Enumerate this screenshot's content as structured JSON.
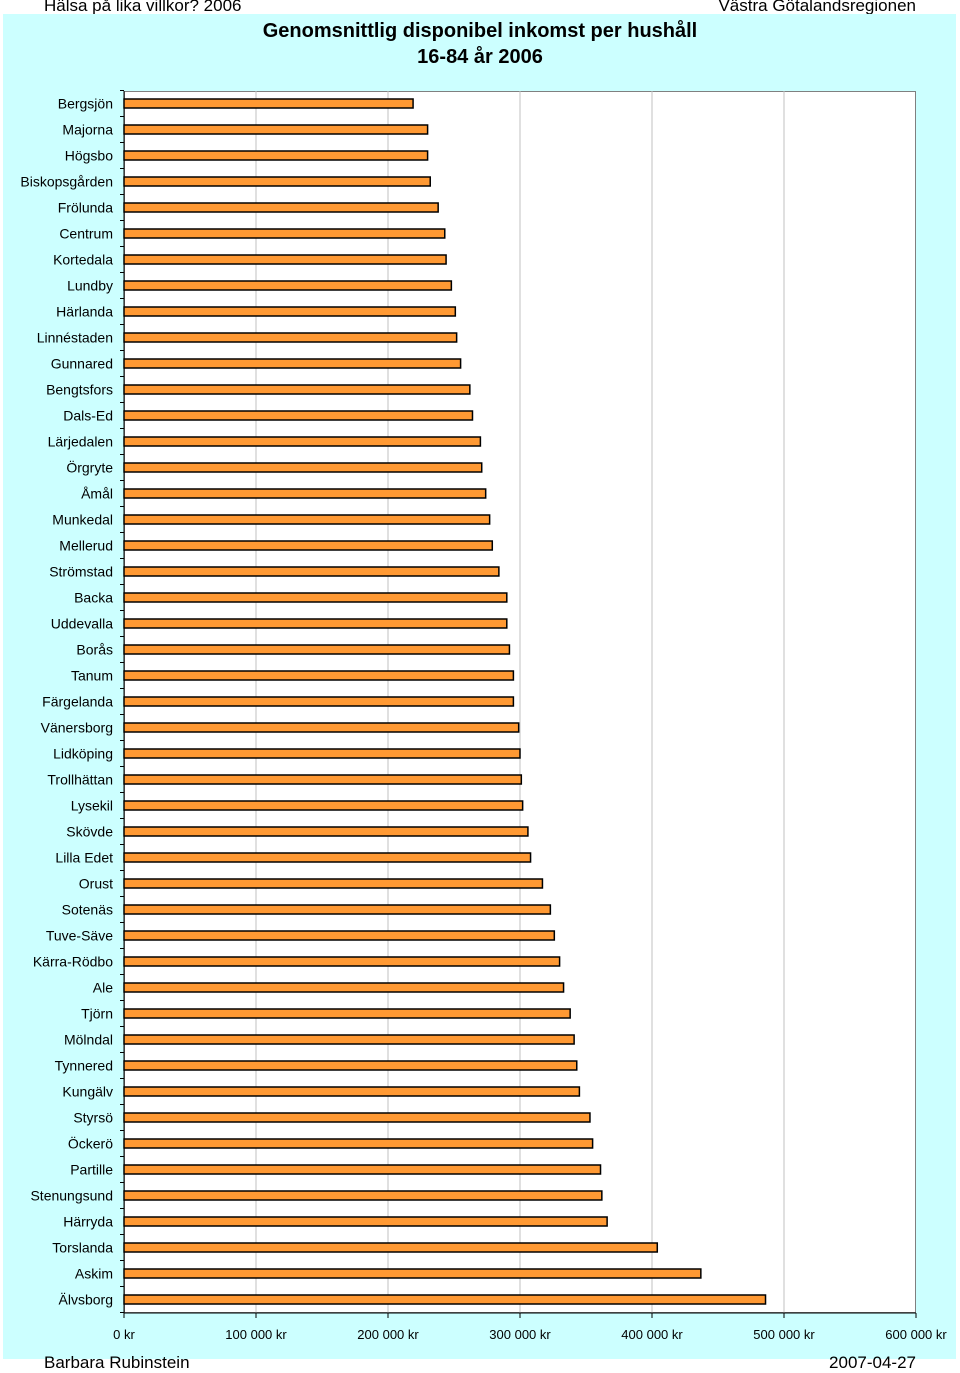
{
  "header": {
    "left_text": "Hälsa på lika villkor? 2006",
    "right_text": "Västra Götalandsregionen"
  },
  "footer": {
    "left_text": "Barbara Rubinstein",
    "right_text": "2007-04-27"
  },
  "colors": {
    "chart_background": "#ccffff",
    "plot_background": "#ffffff",
    "bar_fill": "#ff9933",
    "bar_stroke": "#000000",
    "gridline": "#c0c0c0"
  },
  "chart_data": {
    "type": "bar",
    "orientation": "horizontal",
    "title": "Genomsnittlig disponibel inkomst per hushåll",
    "subtitle": "16-84 år 2006",
    "xlim": [
      0,
      600000
    ],
    "x_ticks": [
      0,
      100000,
      200000,
      300000,
      400000,
      500000,
      600000
    ],
    "x_tick_labels": [
      "0 kr",
      "100 000 kr",
      "200 000 kr",
      "300 000 kr",
      "400 000 kr",
      "500 000 kr",
      "600 000 kr"
    ],
    "grid": true,
    "legend": "none",
    "categories": [
      "Bergsjön",
      "Majorna",
      "Högsbo",
      "Biskopsgården",
      "Frölunda",
      "Centrum",
      "Kortedala",
      "Lundby",
      "Härlanda",
      "Linnéstaden",
      "Gunnared",
      "Bengtsfors",
      "Dals-Ed",
      "Lärjedalen",
      "Örgryte",
      "Åmål",
      "Munkedal",
      "Mellerud",
      "Strömstad",
      "Backa",
      "Uddevalla",
      "Borås",
      "Tanum",
      "Färgelanda",
      "Vänersborg",
      "Lidköping",
      "Trollhättan",
      "Lysekil",
      "Skövde",
      "Lilla Edet",
      "Orust",
      "Sotenäs",
      "Tuve-Säve",
      "Kärra-Rödbo",
      "Ale",
      "Tjörn",
      "Mölndal",
      "Tynnered",
      "Kungälv",
      "Styrsö",
      "Öckerö",
      "Partille",
      "Stenungsund",
      "Härryda",
      "Torslanda",
      "Askim",
      "Älvsborg"
    ],
    "values": [
      219000,
      230000,
      230000,
      232000,
      238000,
      243000,
      244000,
      248000,
      251000,
      252000,
      255000,
      262000,
      264000,
      270000,
      271000,
      274000,
      277000,
      279000,
      284000,
      290000,
      290000,
      292000,
      295000,
      295000,
      299000,
      300000,
      301000,
      302000,
      306000,
      308000,
      317000,
      323000,
      326000,
      330000,
      333000,
      338000,
      341000,
      343000,
      345000,
      353000,
      355000,
      361000,
      362000,
      366000,
      404000,
      437000,
      486000
    ]
  }
}
